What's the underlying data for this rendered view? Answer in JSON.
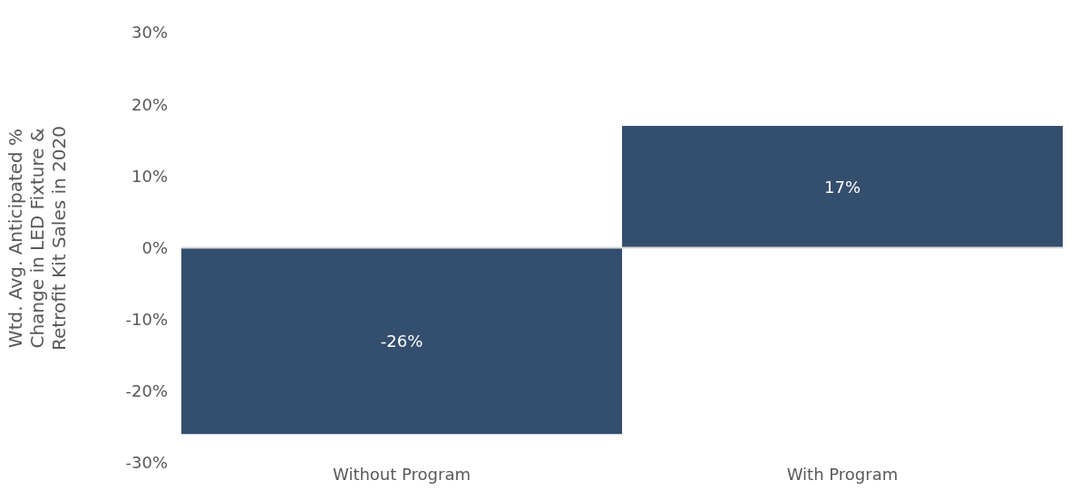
{
  "chart_data": {
    "type": "bar",
    "ylabel": "Wtd. Avg. Anticipated %\nChange in LED Fixture &\nRetrofit Kit Sales in 2020",
    "categories": [
      "Without Program",
      "With Program"
    ],
    "values": [
      -26,
      17
    ],
    "color": "#344e6e",
    "value_labels": [
      "-26%",
      "17%"
    ],
    "ylim": [
      -30,
      30
    ],
    "yticks": [
      {
        "value": -30,
        "label": "-30%"
      },
      {
        "value": -20,
        "label": "-20%"
      },
      {
        "value": -10,
        "label": "-10%"
      },
      {
        "value": 0,
        "label": "0%"
      },
      {
        "value": 10,
        "label": "10%"
      },
      {
        "value": 20,
        "label": "20%"
      },
      {
        "value": 30,
        "label": "30%"
      }
    ],
    "ref_lines": [
      {
        "axis": "y",
        "value": 0,
        "color": "#d9d9d9"
      }
    ],
    "legend": false
  }
}
